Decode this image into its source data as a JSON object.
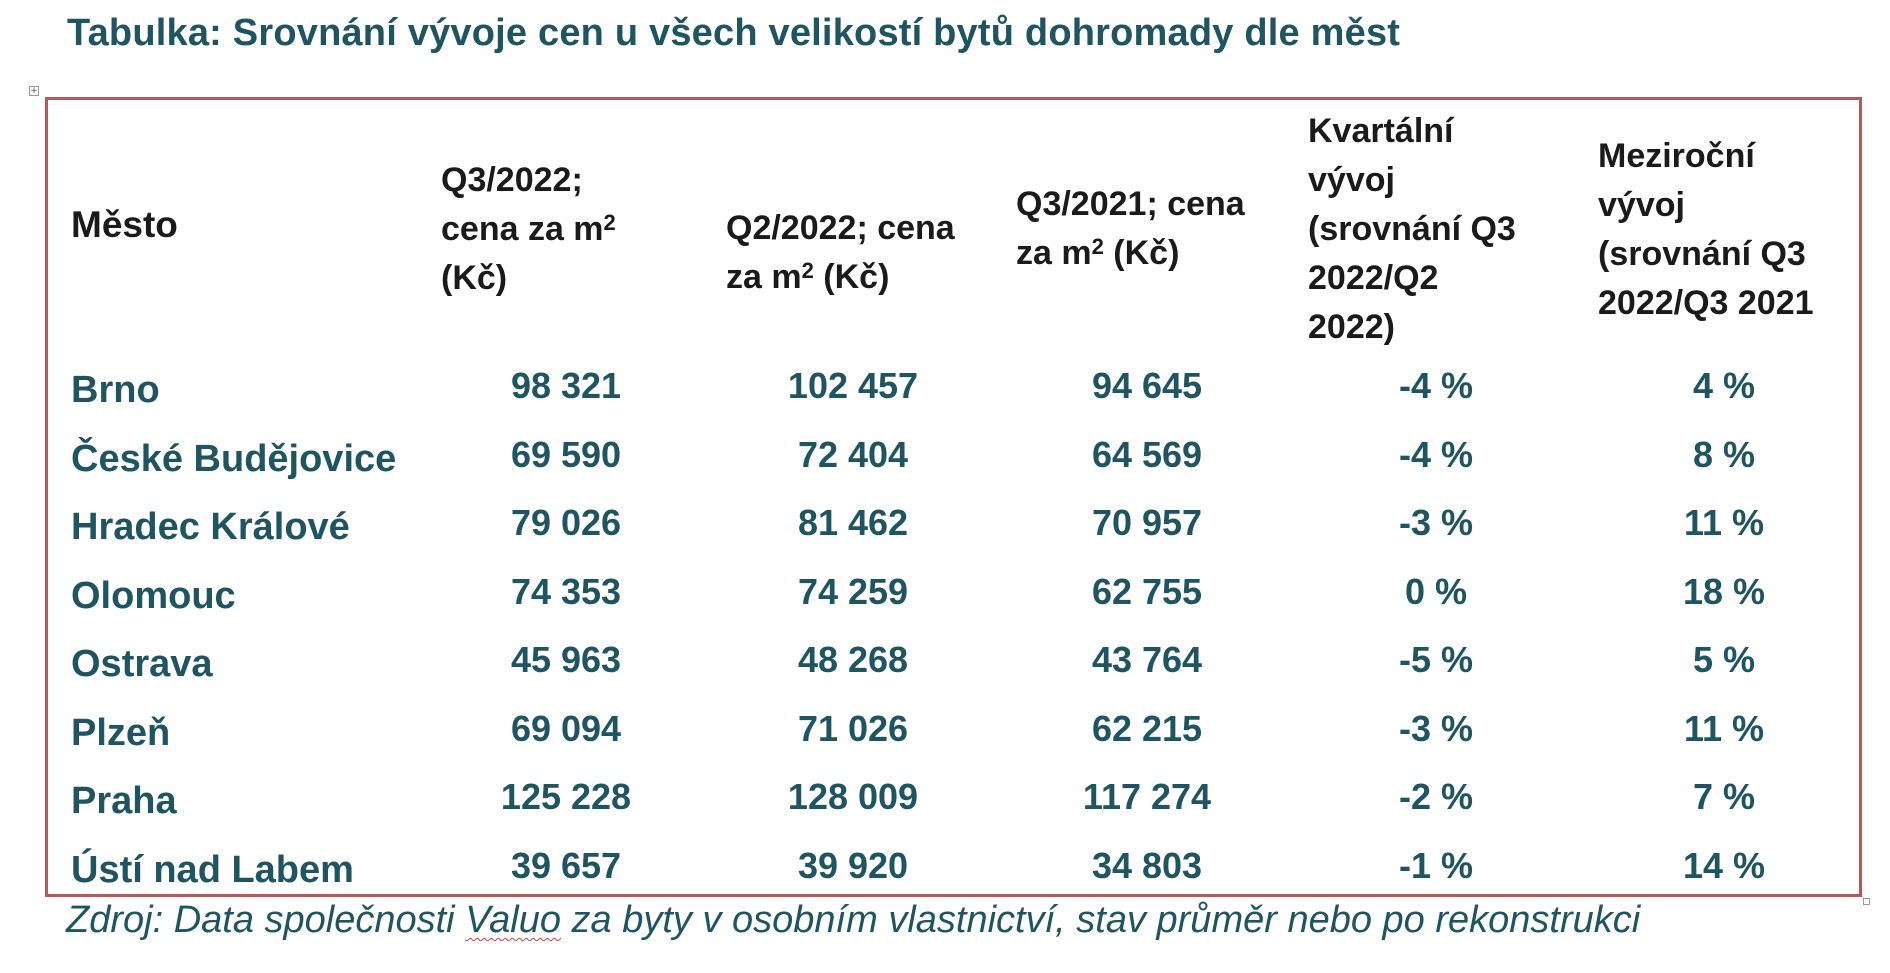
{
  "title": "Tabulka: Srovnání vývoje cen u všech velikostí bytů dohromady dle měst",
  "table": {
    "headers": {
      "city": "Město",
      "q3_2022_a": "Q3/2022;",
      "q3_2022_b": "cena za m",
      "q3_2022_sup": "2",
      "q3_2022_c": "(Kč)",
      "q2_2022_a": "Q2/2022; cena",
      "q2_2022_b": "za m",
      "q2_2022_sup": "2",
      "q2_2022_c": " (Kč)",
      "q3_2021_a": "Q3/2021; cena",
      "q3_2021_b": "za m",
      "q3_2021_sup": "2",
      "q3_2021_c": " (Kč)",
      "kvart_1": "Kvartální",
      "kvart_2": "vývoj",
      "kvart_3": "(srovnání Q3",
      "kvart_4": "2022/Q2",
      "kvart_5": "2022)",
      "mezi_1": "Meziroční",
      "mezi_2": "vývoj",
      "mezi_3": "(srovnání Q3",
      "mezi_4": "2022/Q3 2021"
    },
    "rows": [
      {
        "city": "Brno",
        "q3_2022": "98 321",
        "q2_2022": "102 457",
        "q3_2021": "94 645",
        "qoq": "-4 %",
        "yoy": "4 %"
      },
      {
        "city": "České Budějovice",
        "q3_2022": "69 590",
        "q2_2022": "72 404",
        "q3_2021": "64 569",
        "qoq": "-4 %",
        "yoy": "8 %"
      },
      {
        "city": "Hradec Králové",
        "q3_2022": "79 026",
        "q2_2022": "81 462",
        "q3_2021": "70 957",
        "qoq": "-3 %",
        "yoy": "11 %"
      },
      {
        "city": "Olomouc",
        "q3_2022": "74 353",
        "q2_2022": "74 259",
        "q3_2021": "62 755",
        "qoq": "0 %",
        "yoy": "18 %"
      },
      {
        "city": "Ostrava",
        "q3_2022": "45 963",
        "q2_2022": "48 268",
        "q3_2021": "43 764",
        "qoq": "-5 %",
        "yoy": "5 %"
      },
      {
        "city": "Plzeň",
        "q3_2022": "69 094",
        "q2_2022": "71 026",
        "q3_2021": "62 215",
        "qoq": "-3 %",
        "yoy": "11 %"
      },
      {
        "city": "Praha",
        "q3_2022": "125 228",
        "q2_2022": "128 009",
        "q3_2021": "117 274",
        "qoq": "-2 %",
        "yoy": "7 %"
      },
      {
        "city": "Ústí nad Labem",
        "q3_2022": "39 657",
        "q2_2022": "39 920",
        "q3_2021": "34 803",
        "qoq": "-1 %",
        "yoy": "14 %"
      }
    ]
  },
  "source": {
    "prefix": "Zdroj: Data společnosti ",
    "company": "Valuo",
    "suffix": " za byty v osobním vlastnictví, stav průměr nebo po rekonstrukci"
  },
  "colors": {
    "accent_text": "#1f5461",
    "table_border": "#b55a5a",
    "header_text": "#1a1a1a"
  },
  "icons": {
    "move_handle": "move-handle-icon",
    "resize_handle": "resize-handle-icon"
  }
}
